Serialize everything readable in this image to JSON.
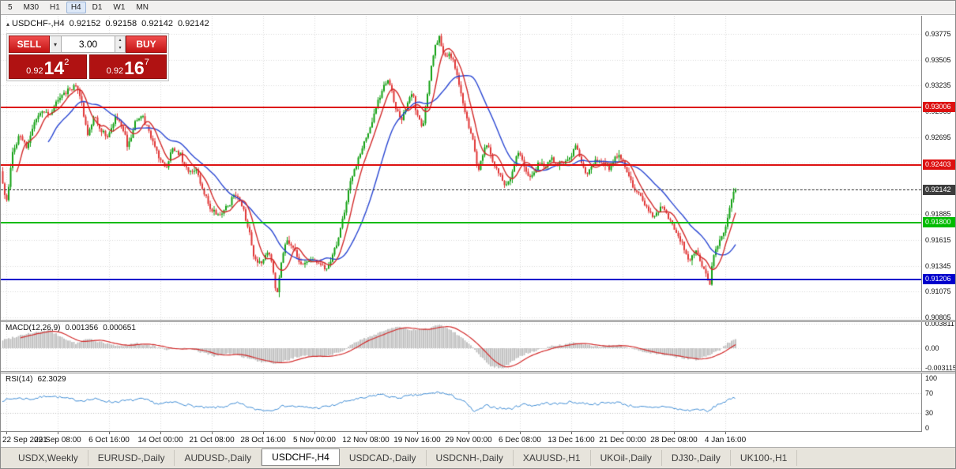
{
  "toolbar": {
    "timeframes": [
      "5",
      "M30",
      "H1",
      "H4",
      "D1",
      "W1",
      "MN"
    ],
    "active": "H4"
  },
  "chart": {
    "symbol_title": "USDCHF-,H4",
    "ohlc": {
      "open": "0.92152",
      "high": "0.92158",
      "low": "0.92142",
      "close": "0.92142"
    }
  },
  "trade_panel": {
    "sell_label": "SELL",
    "buy_label": "BUY",
    "volume": "3.00",
    "sell_price": {
      "small": "0.92",
      "big": "14",
      "sup": "2"
    },
    "buy_price": {
      "small": "0.92",
      "big": "16",
      "sup": "7"
    }
  },
  "indicators": {
    "macd_label": "MACD(12,26,9)",
    "macd_value_main": "0.001356",
    "macd_value_signal": "0.000651",
    "rsi_label": "RSI(14)",
    "rsi_value": "62.3029"
  },
  "axis": {
    "price_ticks": [
      "0.93775",
      "0.93505",
      "0.93235",
      "0.92965",
      "0.92695",
      "0.92425",
      "0.92155",
      "0.91885",
      "0.91615",
      "0.91345",
      "0.91075",
      "0.90805"
    ],
    "macd_ticks": [
      "0.003811",
      "0.00",
      "-0.003115"
    ],
    "rsi_ticks": [
      "100",
      "70",
      "30",
      "0"
    ],
    "levels": [
      {
        "label": "0.93006",
        "price": 0.93006,
        "color": "#dd1111",
        "style": "solid",
        "width": 2,
        "current": false
      },
      {
        "label": "0.92403",
        "price": 0.92403,
        "color": "#dd1111",
        "style": "solid",
        "width": 2,
        "current": false
      },
      {
        "label": "0.92142",
        "price": 0.92142,
        "color": "#3c3c3c",
        "style": "dashed",
        "width": 1,
        "current": true
      },
      {
        "label": "0.91800",
        "price": 0.918,
        "color": "#00bb00",
        "style": "solid",
        "width": 2,
        "current": false
      },
      {
        "label": "0.91206",
        "price": 0.91206,
        "color": "#0000cc",
        "style": "solid",
        "width": 2,
        "current": false
      }
    ]
  },
  "time_axis": [
    "22 Sep 2021",
    "29 Sep 08:00",
    "6 Oct 16:00",
    "14 Oct 00:00",
    "21 Oct 08:00",
    "28 Oct 16:00",
    "5 Nov 00:00",
    "12 Nov 08:00",
    "19 Nov 16:00",
    "29 Nov 00:00",
    "6 Dec 08:00",
    "13 Dec 16:00",
    "21 Dec 00:00",
    "28 Dec 08:00",
    "4 Jan 16:00"
  ],
  "tabs": [
    "USDX,Weekly",
    "EURUSD-,Daily",
    "AUDUSD-,Daily",
    "USDCHF-,H4",
    "USDCAD-,Daily",
    "USDCNH-,Daily",
    "XAUUSD-,H1",
    "UKOil-,Daily",
    "DJ30-,Daily",
    "UK100-,H1"
  ],
  "active_tab": "USDCHF-,H4",
  "chart_data": {
    "type": "candlestick",
    "symbol": "USDCHF-",
    "timeframe": "H4",
    "ohlc_current": {
      "open": 0.92152,
      "high": 0.92158,
      "low": 0.92142,
      "close": 0.92142
    },
    "bid": 0.92142,
    "ask": 0.92167,
    "spread_volume": 3.0,
    "horizontal_levels": [
      0.93006,
      0.92403,
      0.918,
      0.91206
    ],
    "price_axis_range": [
      0.9078,
      0.93965
    ],
    "price_path": [
      [
        0,
        0.9243
      ],
      [
        6,
        0.9215
      ],
      [
        10,
        0.9202
      ],
      [
        16,
        0.9252
      ],
      [
        26,
        0.9272
      ],
      [
        36,
        0.9258
      ],
      [
        46,
        0.9288
      ],
      [
        56,
        0.9298
      ],
      [
        66,
        0.9292
      ],
      [
        76,
        0.9312
      ],
      [
        88,
        0.9318
      ],
      [
        97,
        0.9325
      ],
      [
        105,
        0.9302
      ],
      [
        112,
        0.9272
      ],
      [
        120,
        0.9292
      ],
      [
        128,
        0.9277
      ],
      [
        138,
        0.927
      ],
      [
        148,
        0.9291
      ],
      [
        156,
        0.9281
      ],
      [
        163,
        0.9257
      ],
      [
        172,
        0.9286
      ],
      [
        181,
        0.9291
      ],
      [
        191,
        0.9272
      ],
      [
        201,
        0.9252
      ],
      [
        211,
        0.9237
      ],
      [
        219,
        0.9256
      ],
      [
        229,
        0.9251
      ],
      [
        239,
        0.9232
      ],
      [
        249,
        0.9237
      ],
      [
        259,
        0.9212
      ],
      [
        269,
        0.9192
      ],
      [
        279,
        0.9187
      ],
      [
        289,
        0.9196
      ],
      [
        299,
        0.9211
      ],
      [
        306,
        0.9201
      ],
      [
        316,
        0.9171
      ],
      [
        323,
        0.9143
      ],
      [
        331,
        0.9137
      ],
      [
        341,
        0.9152
      ],
      [
        348,
        0.9124
      ],
      [
        351,
        0.9098
      ],
      [
        356,
        0.9134
      ],
      [
        364,
        0.9162
      ],
      [
        371,
        0.9156
      ],
      [
        379,
        0.9141
      ],
      [
        387,
        0.9136
      ],
      [
        396,
        0.9142
      ],
      [
        404,
        0.9136
      ],
      [
        413,
        0.9131
      ],
      [
        421,
        0.9142
      ],
      [
        429,
        0.9163
      ],
      [
        436,
        0.9187
      ],
      [
        444,
        0.9222
      ],
      [
        453,
        0.9242
      ],
      [
        461,
        0.9262
      ],
      [
        469,
        0.9277
      ],
      [
        477,
        0.9302
      ],
      [
        486,
        0.9322
      ],
      [
        493,
        0.9331
      ],
      [
        501,
        0.9302
      ],
      [
        509,
        0.9287
      ],
      [
        516,
        0.9302
      ],
      [
        523,
        0.9316
      ],
      [
        529,
        0.9292
      ],
      [
        536,
        0.9278
      ],
      [
        543,
        0.9322
      ],
      [
        551,
        0.9362
      ],
      [
        557,
        0.9374
      ],
      [
        563,
        0.9352
      ],
      [
        569,
        0.9357
      ],
      [
        576,
        0.9347
      ],
      [
        583,
        0.9322
      ],
      [
        591,
        0.9292
      ],
      [
        599,
        0.9267
      ],
      [
        606,
        0.9232
      ],
      [
        613,
        0.9257
      ],
      [
        619,
        0.9262
      ],
      [
        626,
        0.9242
      ],
      [
        633,
        0.9232
      ],
      [
        641,
        0.9217
      ],
      [
        648,
        0.9228
      ],
      [
        656,
        0.9256
      ],
      [
        663,
        0.9242
      ],
      [
        669,
        0.9227
      ],
      [
        676,
        0.9232
      ],
      [
        683,
        0.9242
      ],
      [
        691,
        0.9237
      ],
      [
        699,
        0.9247
      ],
      [
        706,
        0.9241
      ],
      [
        713,
        0.9241
      ],
      [
        721,
        0.9246
      ],
      [
        729,
        0.9261
      ],
      [
        736,
        0.9246
      ],
      [
        743,
        0.9231
      ],
      [
        751,
        0.9241
      ],
      [
        759,
        0.9246
      ],
      [
        766,
        0.9241
      ],
      [
        773,
        0.9236
      ],
      [
        781,
        0.9251
      ],
      [
        789,
        0.9246
      ],
      [
        796,
        0.9231
      ],
      [
        803,
        0.9216
      ],
      [
        811,
        0.9211
      ],
      [
        819,
        0.9196
      ],
      [
        826,
        0.9186
      ],
      [
        833,
        0.9191
      ],
      [
        841,
        0.9196
      ],
      [
        849,
        0.9181
      ],
      [
        856,
        0.9171
      ],
      [
        863,
        0.9161
      ],
      [
        869,
        0.9146
      ],
      [
        876,
        0.9141
      ],
      [
        883,
        0.9151
      ],
      [
        889,
        0.9136
      ],
      [
        896,
        0.9121
      ],
      [
        899,
        0.9109
      ],
      [
        903,
        0.9141
      ],
      [
        909,
        0.9156
      ],
      [
        916,
        0.9166
      ],
      [
        921,
        0.9181
      ],
      [
        926,
        0.9201
      ],
      [
        931,
        0.9214
      ]
    ],
    "macd": {
      "params": [
        12,
        26,
        9
      ],
      "main": 0.001356,
      "signal": 0.000651,
      "axis_max": 0.003811,
      "axis_min": -0.003115,
      "path": [
        [
          0,
          0.0012
        ],
        [
          30,
          0.0022
        ],
        [
          60,
          0.0028
        ],
        [
          80,
          0.0015
        ],
        [
          95,
          0.0007
        ],
        [
          110,
          0.0015
        ],
        [
          130,
          0.0008
        ],
        [
          150,
          0.0003
        ],
        [
          170,
          0.0008
        ],
        [
          190,
          0.0004
        ],
        [
          210,
          -0.0002
        ],
        [
          230,
          0
        ],
        [
          250,
          -0.0005
        ],
        [
          270,
          -0.0012
        ],
        [
          290,
          -0.0008
        ],
        [
          310,
          -0.0015
        ],
        [
          330,
          -0.0022
        ],
        [
          350,
          -0.0024
        ],
        [
          370,
          -0.0015
        ],
        [
          390,
          -0.0012
        ],
        [
          410,
          -0.0013
        ],
        [
          430,
          -0.0005
        ],
        [
          450,
          0.001
        ],
        [
          470,
          0.002
        ],
        [
          490,
          0.003
        ],
        [
          505,
          0.0033
        ],
        [
          520,
          0.0028
        ],
        [
          540,
          0.003
        ],
        [
          555,
          0.0037
        ],
        [
          570,
          0.0028
        ],
        [
          590,
          0.001
        ],
        [
          605,
          -0.001
        ],
        [
          620,
          -0.0028
        ],
        [
          635,
          -0.0031
        ],
        [
          650,
          -0.0018
        ],
        [
          665,
          -0.0008
        ],
        [
          680,
          -0.0003
        ],
        [
          695,
          0.0003
        ],
        [
          710,
          0.0005
        ],
        [
          725,
          0.0008
        ],
        [
          740,
          0.0005
        ],
        [
          760,
          0.0003
        ],
        [
          780,
          0.0005
        ],
        [
          800,
          -0.0002
        ],
        [
          820,
          -0.0008
        ],
        [
          840,
          -0.001
        ],
        [
          860,
          -0.0015
        ],
        [
          880,
          -0.0018
        ],
        [
          895,
          -0.0012
        ],
        [
          910,
          -0.0002
        ],
        [
          920,
          0.0008
        ],
        [
          931,
          0.0014
        ]
      ]
    },
    "rsi": {
      "period": 14,
      "value": 62.3029,
      "levels": [
        70,
        30
      ],
      "path": [
        [
          0,
          55
        ],
        [
          20,
          60
        ],
        [
          40,
          58
        ],
        [
          60,
          65
        ],
        [
          80,
          60
        ],
        [
          100,
          55
        ],
        [
          120,
          58
        ],
        [
          140,
          52
        ],
        [
          160,
          55
        ],
        [
          180,
          58
        ],
        [
          200,
          48
        ],
        [
          220,
          52
        ],
        [
          240,
          45
        ],
        [
          260,
          40
        ],
        [
          280,
          42
        ],
        [
          300,
          50
        ],
        [
          320,
          38
        ],
        [
          340,
          35
        ],
        [
          360,
          45
        ],
        [
          380,
          42
        ],
        [
          400,
          40
        ],
        [
          420,
          45
        ],
        [
          440,
          55
        ],
        [
          460,
          60
        ],
        [
          480,
          68
        ],
        [
          500,
          60
        ],
        [
          520,
          65
        ],
        [
          540,
          68
        ],
        [
          555,
          72
        ],
        [
          570,
          65
        ],
        [
          585,
          55
        ],
        [
          600,
          32
        ],
        [
          615,
          45
        ],
        [
          630,
          40
        ],
        [
          645,
          38
        ],
        [
          660,
          48
        ],
        [
          675,
          45
        ],
        [
          690,
          50
        ],
        [
          705,
          48
        ],
        [
          720,
          52
        ],
        [
          735,
          50
        ],
        [
          750,
          48
        ],
        [
          765,
          50
        ],
        [
          780,
          52
        ],
        [
          795,
          45
        ],
        [
          810,
          42
        ],
        [
          825,
          40
        ],
        [
          840,
          44
        ],
        [
          855,
          38
        ],
        [
          870,
          35
        ],
        [
          885,
          38
        ],
        [
          895,
          32
        ],
        [
          905,
          45
        ],
        [
          915,
          52
        ],
        [
          925,
          58
        ],
        [
          931,
          62
        ]
      ]
    }
  }
}
